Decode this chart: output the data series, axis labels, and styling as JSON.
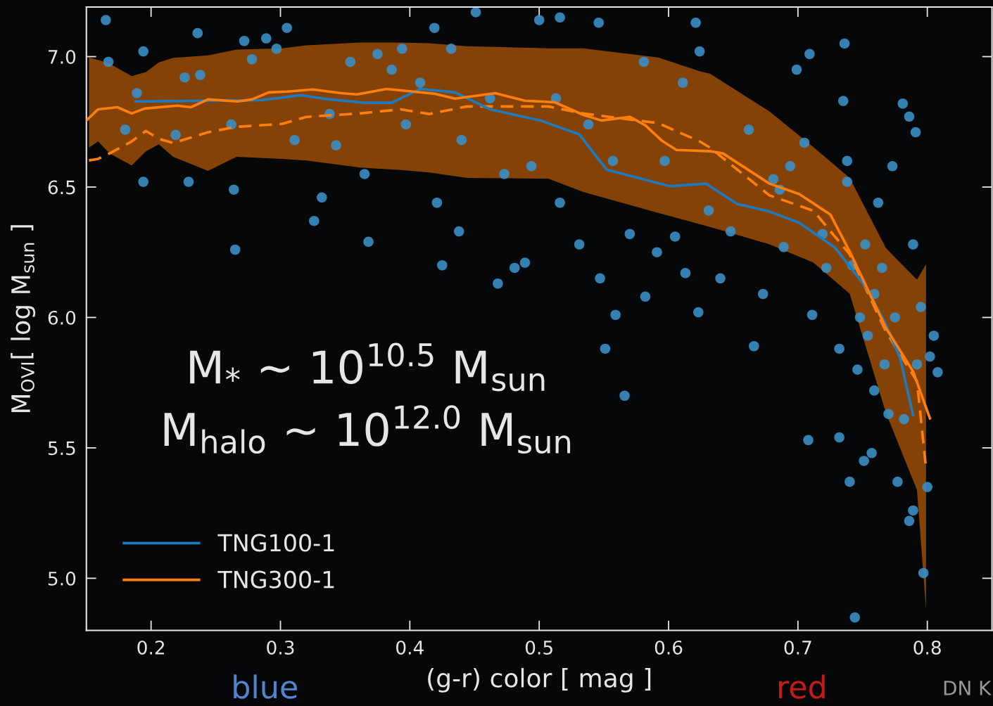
{
  "chart_data": {
    "type": "scatter",
    "xlabel": "(g-r) color [ mag ]",
    "ylabel": "M$_{OVI}$[ log M$_{sun}$ ]",
    "xlim": [
      0.15,
      0.85
    ],
    "ylim": [
      4.8,
      7.19
    ],
    "xticks": [
      0.2,
      0.3,
      0.4,
      0.5,
      0.6,
      0.7,
      0.8
    ],
    "yticks": [
      {
        "value": 5,
        "label": "5.0"
      },
      5.5,
      {
        "value": 6,
        "label": "6.0"
      },
      6.5,
      {
        "value": 7,
        "label": "7.0"
      }
    ],
    "grid": false,
    "legend": "bottom left",
    "annotations": [
      "M$_{*}$ ~ 10$^{10.5}$ M$_{sun}$",
      "M$_{halo}$ ~ 10$^{12.0}$ M$_{sun}$",
      "blue",
      "red",
      "DN K"
    ],
    "series": [
      {
        "marker": "circle",
        "color": "#3a8fc4",
        "x": [
          0.165,
          0.167,
          0.194,
          0.18,
          0.189,
          0.194,
          0.229,
          0.219,
          0.236,
          0.238,
          0.265,
          0.264,
          0.226,
          0.272,
          0.262,
          0.278,
          0.289,
          0.297,
          0.311,
          0.305,
          0.326,
          0.332,
          0.338,
          0.343,
          0.354,
          0.365,
          0.368,
          0.375,
          0.386,
          0.394,
          0.397,
          0.408,
          0.419,
          0.421,
          0.425,
          0.432,
          0.438,
          0.44,
          0.451,
          0.462,
          0.468,
          0.473,
          0.481,
          0.489,
          0.494,
          0.5,
          0.516,
          0.513,
          0.516,
          0.531,
          0.538,
          0.546,
          0.547,
          0.551,
          0.557,
          0.559,
          0.566,
          0.57,
          0.581,
          0.582,
          0.591,
          0.597,
          0.605,
          0.611,
          0.613,
          0.621,
          0.623,
          0.624,
          0.631,
          0.64,
          0.648,
          0.662,
          0.666,
          0.673,
          0.681,
          0.686,
          0.689,
          0.694,
          0.699,
          0.705,
          0.708,
          0.709,
          0.711,
          0.719,
          0.722,
          0.732,
          0.738,
          0.736,
          0.732,
          0.74,
          0.744,
          0.746,
          0.752,
          0.754,
          0.751,
          0.759,
          0.759,
          0.762,
          0.765,
          0.767,
          0.77,
          0.773,
          0.775,
          0.777,
          0.781,
          0.782,
          0.786,
          0.789,
          0.789,
          0.792,
          0.795,
          0.797,
          0.8,
          0.802,
          0.805,
          0.808,
          0.791,
          0.786,
          0.735,
          0.738,
          0.757,
          0.742,
          0.748
        ],
        "values": [
          7.14,
          6.98,
          7.02,
          6.72,
          6.86,
          6.52,
          6.52,
          6.7,
          7.09,
          6.93,
          6.26,
          6.49,
          6.92,
          7.06,
          6.74,
          6.99,
          7.07,
          7.03,
          6.68,
          7.11,
          6.37,
          6.46,
          6.78,
          6.66,
          6.98,
          6.55,
          6.29,
          7.01,
          6.95,
          7.03,
          6.74,
          6.9,
          7.11,
          6.44,
          6.2,
          7.03,
          6.33,
          6.68,
          7.17,
          6.84,
          6.13,
          6.55,
          6.19,
          6.21,
          6.58,
          7.14,
          7.15,
          6.84,
          6.44,
          6.28,
          6.74,
          7.13,
          6.15,
          5.88,
          6.6,
          6.01,
          5.7,
          6.32,
          6.98,
          6.08,
          6.25,
          6.6,
          6.31,
          6.9,
          6.17,
          7.13,
          6.02,
          7.02,
          6.41,
          6.15,
          6.33,
          6.72,
          5.89,
          6.09,
          6.53,
          6.49,
          6.27,
          6.58,
          6.95,
          6.67,
          5.53,
          7.01,
          6.01,
          6.32,
          6.19,
          5.88,
          6.6,
          7.05,
          5.54,
          5.37,
          4.85,
          5.8,
          6.28,
          5.93,
          5.45,
          6.09,
          5.72,
          6.44,
          6.19,
          5.82,
          5.63,
          6.58,
          6.0,
          5.37,
          6.82,
          5.61,
          6.77,
          6.28,
          5.26,
          5.82,
          6.04,
          5.02,
          5.35,
          5.85,
          5.93,
          5.79,
          6.71,
          5.22,
          6.83,
          6.52,
          5.48,
          6.2,
          6.0
        ]
      },
      {
        "type": "line",
        "line_style": "dashed",
        "color": "#ff7f0e",
        "x": [
          0.152,
          0.159,
          0.168,
          0.185,
          0.196,
          0.206,
          0.217,
          0.244,
          0.266,
          0.301,
          0.32,
          0.361,
          0.393,
          0.415,
          0.444,
          0.507,
          0.534,
          0.592,
          0.624,
          0.632,
          0.678,
          0.712,
          0.74,
          0.768,
          0.792,
          0.799
        ],
        "values": [
          6.602,
          6.608,
          6.629,
          6.675,
          6.715,
          6.685,
          6.669,
          6.71,
          6.731,
          6.742,
          6.769,
          6.782,
          6.798,
          6.78,
          6.809,
          6.809,
          6.782,
          6.745,
          6.675,
          6.651,
          6.468,
          6.409,
          6.242,
          5.946,
          5.755,
          5.422
        ],
        "upper": [
          6.997,
          6.987,
          6.973,
          6.925,
          6.941,
          6.978,
          6.995,
          7.005,
          7.027,
          7.032,
          7.043,
          7.054,
          7.054,
          7.051,
          7.04,
          7.032,
          7.032,
          6.997,
          6.944,
          6.935,
          6.79,
          6.653,
          6.535,
          6.266,
          6.145,
          6.204
        ],
        "lower": [
          6.651,
          6.675,
          6.629,
          6.583,
          6.637,
          6.664,
          6.616,
          6.562,
          6.616,
          6.608,
          6.602,
          6.575,
          6.565,
          6.556,
          6.535,
          6.532,
          6.481,
          6.401,
          6.358,
          6.347,
          6.28,
          6.21,
          6.091,
          5.634,
          5.339,
          4.882
        ]
      },
      {
        "type": "line",
        "name": "TNG100-1",
        "line_style": "solid",
        "color": "#1f7bc0",
        "x": [
          0.188,
          0.242,
          0.285,
          0.316,
          0.338,
          0.365,
          0.386,
          0.408,
          0.435,
          0.462,
          0.501,
          0.531,
          0.552,
          0.601,
          0.629,
          0.653,
          0.678,
          0.701,
          0.729,
          0.753,
          0.768,
          0.779,
          0.789
        ],
        "values": [
          6.828,
          6.831,
          6.833,
          6.852,
          6.836,
          6.823,
          6.823,
          6.876,
          6.863,
          6.798,
          6.755,
          6.702,
          6.567,
          6.503,
          6.513,
          6.435,
          6.406,
          6.363,
          6.266,
          6.113,
          5.973,
          5.844,
          5.626
        ]
      },
      {
        "type": "line",
        "name": "TNG300-1",
        "line_style": "solid",
        "color": "#ff7f0e",
        "x": [
          0.15,
          0.159,
          0.174,
          0.185,
          0.195,
          0.22,
          0.231,
          0.244,
          0.267,
          0.278,
          0.291,
          0.305,
          0.325,
          0.347,
          0.359,
          0.382,
          0.419,
          0.435,
          0.466,
          0.489,
          0.512,
          0.534,
          0.548,
          0.57,
          0.582,
          0.595,
          0.606,
          0.633,
          0.642,
          0.678,
          0.701,
          0.725,
          0.74,
          0.768,
          0.789,
          0.802
        ],
        "values": [
          6.755,
          6.798,
          6.806,
          6.782,
          6.801,
          6.812,
          6.806,
          6.836,
          6.828,
          6.836,
          6.863,
          6.866,
          6.874,
          6.86,
          6.855,
          6.876,
          6.858,
          6.839,
          6.86,
          6.831,
          6.825,
          6.777,
          6.755,
          6.769,
          6.737,
          6.677,
          6.642,
          6.637,
          6.629,
          6.513,
          6.473,
          6.395,
          6.253,
          5.96,
          5.793,
          5.613
        ]
      }
    ]
  }
}
